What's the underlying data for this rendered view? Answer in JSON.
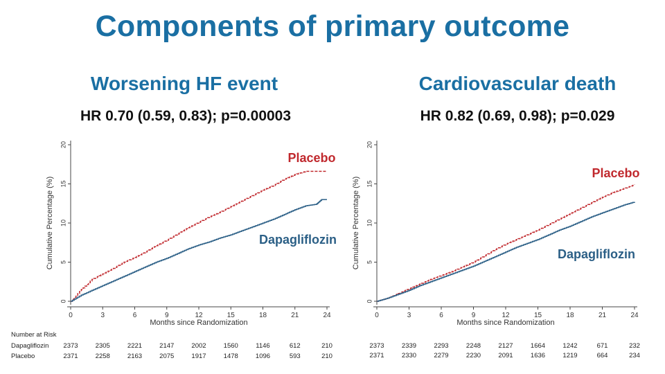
{
  "page": {
    "title": "Components of primary outcome"
  },
  "chart_data": [
    {
      "type": "line",
      "title": "Worsening HF event",
      "subtitle": "HR 0.70 (0.59, 0.83); p=0.00003",
      "xlabel": "Months since Randomization",
      "ylabel": "Cumulative Percentage (%)",
      "xlim": [
        0,
        24
      ],
      "ylim": [
        0,
        20
      ],
      "xticks": [
        0,
        3,
        6,
        9,
        12,
        15,
        18,
        21,
        24
      ],
      "yticks": [
        0,
        5,
        10,
        15,
        20
      ],
      "series": [
        {
          "name": "Placebo",
          "color": "#c0282d",
          "dash": true,
          "x": [
            0,
            1,
            2,
            3,
            4,
            5,
            6,
            7,
            8,
            9,
            10,
            11,
            12,
            13,
            14,
            15,
            16,
            17,
            18,
            19,
            20,
            21,
            22,
            23,
            24
          ],
          "y": [
            0,
            1.5,
            2.8,
            3.5,
            4.2,
            5.0,
            5.6,
            6.3,
            7.1,
            7.8,
            8.6,
            9.4,
            10.1,
            10.8,
            11.4,
            12.1,
            12.8,
            13.5,
            14.2,
            14.8,
            15.6,
            16.2,
            16.6,
            16.6,
            16.6
          ]
        },
        {
          "name": "Dapagliflozin",
          "color": "#2b5f86",
          "dash": false,
          "x": [
            0,
            1,
            2,
            3,
            4,
            5,
            6,
            7,
            8,
            9,
            10,
            11,
            12,
            13,
            14,
            15,
            16,
            17,
            18,
            19,
            20,
            21,
            22,
            23,
            23.5,
            24
          ],
          "y": [
            0,
            0.8,
            1.4,
            2.0,
            2.6,
            3.2,
            3.8,
            4.4,
            5.0,
            5.5,
            6.1,
            6.7,
            7.2,
            7.6,
            8.1,
            8.5,
            9.0,
            9.5,
            10.0,
            10.5,
            11.1,
            11.7,
            12.2,
            12.4,
            13.0,
            13.0
          ]
        }
      ],
      "labels": {
        "placebo": "Placebo",
        "dapagliflozin": "Dapagliflozin"
      },
      "risk_table": {
        "header": "Number at Risk",
        "rows": [
          {
            "name": "Dapagliflozin",
            "values": [
              "2373",
              "2305",
              "2221",
              "2147",
              "2002",
              "1560",
              "1146",
              "612",
              "210"
            ]
          },
          {
            "name": "Placebo",
            "values": [
              "2371",
              "2258",
              "2163",
              "2075",
              "1917",
              "1478",
              "1096",
              "593",
              "210"
            ]
          }
        ]
      }
    },
    {
      "type": "line",
      "title": "Cardiovascular death",
      "subtitle": "HR 0.82 (0.69, 0.98); p=0.029",
      "xlabel": "Months since Randomization",
      "ylabel": "Cumulative Percentage (%)",
      "xlim": [
        0,
        24
      ],
      "ylim": [
        0,
        20
      ],
      "xticks": [
        0,
        3,
        6,
        9,
        12,
        15,
        18,
        21,
        24
      ],
      "yticks": [
        0,
        5,
        10,
        15,
        20
      ],
      "series": [
        {
          "name": "Placebo",
          "color": "#c0282d",
          "dash": true,
          "x": [
            0,
            1,
            2,
            3,
            4,
            5,
            6,
            7,
            8,
            9,
            10,
            11,
            12,
            13,
            14,
            15,
            16,
            17,
            18,
            19,
            20,
            21,
            22,
            23,
            24
          ],
          "y": [
            0,
            0.4,
            1.0,
            1.6,
            2.2,
            2.8,
            3.3,
            3.8,
            4.4,
            5.0,
            5.8,
            6.6,
            7.3,
            7.9,
            8.5,
            9.1,
            9.8,
            10.5,
            11.2,
            11.9,
            12.6,
            13.3,
            13.9,
            14.4,
            14.9
          ]
        },
        {
          "name": "Dapagliflozin",
          "color": "#2b5f86",
          "dash": false,
          "x": [
            0,
            1,
            2,
            3,
            4,
            5,
            6,
            7,
            8,
            9,
            10,
            11,
            12,
            13,
            14,
            15,
            16,
            17,
            18,
            19,
            20,
            21,
            22,
            23,
            24
          ],
          "y": [
            0,
            0.4,
            0.9,
            1.4,
            2.0,
            2.5,
            3.0,
            3.5,
            4.0,
            4.5,
            5.1,
            5.7,
            6.3,
            6.9,
            7.4,
            7.9,
            8.5,
            9.1,
            9.6,
            10.2,
            10.8,
            11.3,
            11.8,
            12.3,
            12.7
          ]
        }
      ],
      "labels": {
        "placebo": "Placebo",
        "dapagliflozin": "Dapagliflozin"
      },
      "risk_table": {
        "header": "",
        "rows": [
          {
            "name": "",
            "values": [
              "2373",
              "2339",
              "2293",
              "2248",
              "2127",
              "1664",
              "1242",
              "671",
              "232"
            ]
          },
          {
            "name": "",
            "values": [
              "2371",
              "2330",
              "2279",
              "2230",
              "2091",
              "1636",
              "1219",
              "664",
              "234"
            ]
          }
        ]
      }
    }
  ]
}
